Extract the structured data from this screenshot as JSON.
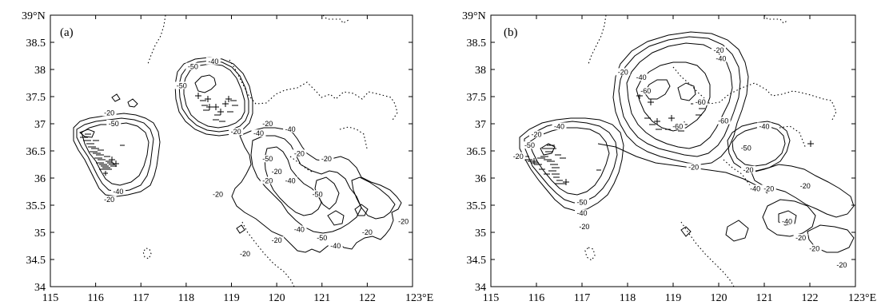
{
  "chart_data": [
    {
      "type": "contour_map",
      "panel_label": "(a)",
      "xlim": [
        115,
        123
      ],
      "ylim": [
        34,
        39
      ],
      "x_ticks": [
        "115",
        "116",
        "117",
        "118",
        "119",
        "120",
        "121",
        "122",
        "123°E"
      ],
      "y_ticks": [
        "34",
        "34.5",
        "35",
        "35.5",
        "36",
        "36.5",
        "37",
        "37.5",
        "38",
        "38.5",
        "39°N"
      ],
      "contour_levels": [
        -20,
        -40,
        -50
      ],
      "contour_labels": [
        {
          "text": "-20",
          "lon": 116.3,
          "lat": 37.2
        },
        {
          "text": "-50",
          "lon": 116.4,
          "lat": 37.0
        },
        {
          "text": "-40",
          "lon": 116.5,
          "lat": 35.75
        },
        {
          "text": "-20",
          "lon": 116.3,
          "lat": 35.6
        },
        {
          "text": "-50",
          "lon": 118.15,
          "lat": 38.05
        },
        {
          "text": "-40",
          "lon": 118.6,
          "lat": 38.15
        },
        {
          "text": "-50",
          "lon": 117.9,
          "lat": 37.7
        },
        {
          "text": "-20",
          "lon": 119.1,
          "lat": 36.85
        },
        {
          "text": "-40",
          "lon": 119.6,
          "lat": 36.82
        },
        {
          "text": "-20",
          "lon": 119.8,
          "lat": 37.0
        },
        {
          "text": "-40",
          "lon": 120.3,
          "lat": 36.9
        },
        {
          "text": "-20",
          "lon": 120.5,
          "lat": 36.45
        },
        {
          "text": "-50",
          "lon": 119.8,
          "lat": 36.35
        },
        {
          "text": "-20",
          "lon": 120.0,
          "lat": 36.12
        },
        {
          "text": "-20",
          "lon": 119.8,
          "lat": 35.95
        },
        {
          "text": "-40",
          "lon": 120.3,
          "lat": 35.95
        },
        {
          "text": "-20",
          "lon": 121.1,
          "lat": 36.35
        },
        {
          "text": "-20",
          "lon": 118.7,
          "lat": 35.7
        },
        {
          "text": "-50",
          "lon": 120.9,
          "lat": 35.7
        },
        {
          "text": "-40",
          "lon": 120.5,
          "lat": 35.05
        },
        {
          "text": "-50",
          "lon": 121.0,
          "lat": 34.9
        },
        {
          "text": "-20",
          "lon": 120.0,
          "lat": 34.85
        },
        {
          "text": "-40",
          "lon": 121.3,
          "lat": 34.75
        },
        {
          "text": "-20",
          "lon": 122.0,
          "lat": 35.0
        },
        {
          "text": "-20",
          "lon": 122.8,
          "lat": 35.2
        },
        {
          "text": "-20",
          "lon": 119.3,
          "lat": 34.6
        }
      ]
    },
    {
      "type": "contour_map",
      "panel_label": "(b)",
      "xlim": [
        115,
        123
      ],
      "ylim": [
        34,
        39
      ],
      "x_ticks": [
        "115",
        "116",
        "117",
        "118",
        "119",
        "120",
        "121",
        "122",
        "123°E"
      ],
      "y_ticks": [
        "34",
        "34.5",
        "35",
        "35.5",
        "36",
        "36.5",
        "37",
        "37.5",
        "38",
        "38.5",
        "39°N"
      ],
      "contour_levels": [
        -20,
        -40,
        -50,
        -60
      ],
      "contour_labels": [
        {
          "text": "-20",
          "lon": 116.0,
          "lat": 36.8
        },
        {
          "text": "-40",
          "lon": 116.5,
          "lat": 36.95
        },
        {
          "text": "-50",
          "lon": 115.85,
          "lat": 36.6
        },
        {
          "text": "-20",
          "lon": 115.6,
          "lat": 36.4
        },
        {
          "text": "-50",
          "lon": 117.0,
          "lat": 35.55
        },
        {
          "text": "-40",
          "lon": 117.0,
          "lat": 35.35
        },
        {
          "text": "-20",
          "lon": 117.05,
          "lat": 35.1
        },
        {
          "text": "-20",
          "lon": 120.0,
          "lat": 38.35
        },
        {
          "text": "-40",
          "lon": 120.05,
          "lat": 38.2
        },
        {
          "text": "-20",
          "lon": 117.9,
          "lat": 37.95
        },
        {
          "text": "-40",
          "lon": 118.3,
          "lat": 37.85
        },
        {
          "text": "-60",
          "lon": 118.4,
          "lat": 37.6
        },
        {
          "text": "-60",
          "lon": 119.6,
          "lat": 37.4
        },
        {
          "text": "-60",
          "lon": 120.1,
          "lat": 37.05
        },
        {
          "text": "-60",
          "lon": 119.1,
          "lat": 36.95
        },
        {
          "text": "-20",
          "lon": 119.45,
          "lat": 36.2
        },
        {
          "text": "-50",
          "lon": 120.6,
          "lat": 36.55
        },
        {
          "text": "-40",
          "lon": 121.0,
          "lat": 36.95
        },
        {
          "text": "-20",
          "lon": 120.65,
          "lat": 36.15
        },
        {
          "text": "-40",
          "lon": 120.8,
          "lat": 35.8
        },
        {
          "text": "-20",
          "lon": 121.1,
          "lat": 35.8
        },
        {
          "text": "-20",
          "lon": 121.9,
          "lat": 35.85
        },
        {
          "text": "-40",
          "lon": 121.5,
          "lat": 35.2
        },
        {
          "text": "-20",
          "lon": 121.8,
          "lat": 34.9
        },
        {
          "text": "-20",
          "lon": 122.1,
          "lat": 34.7
        },
        {
          "text": "-20",
          "lon": 122.7,
          "lat": 34.4
        }
      ]
    }
  ]
}
